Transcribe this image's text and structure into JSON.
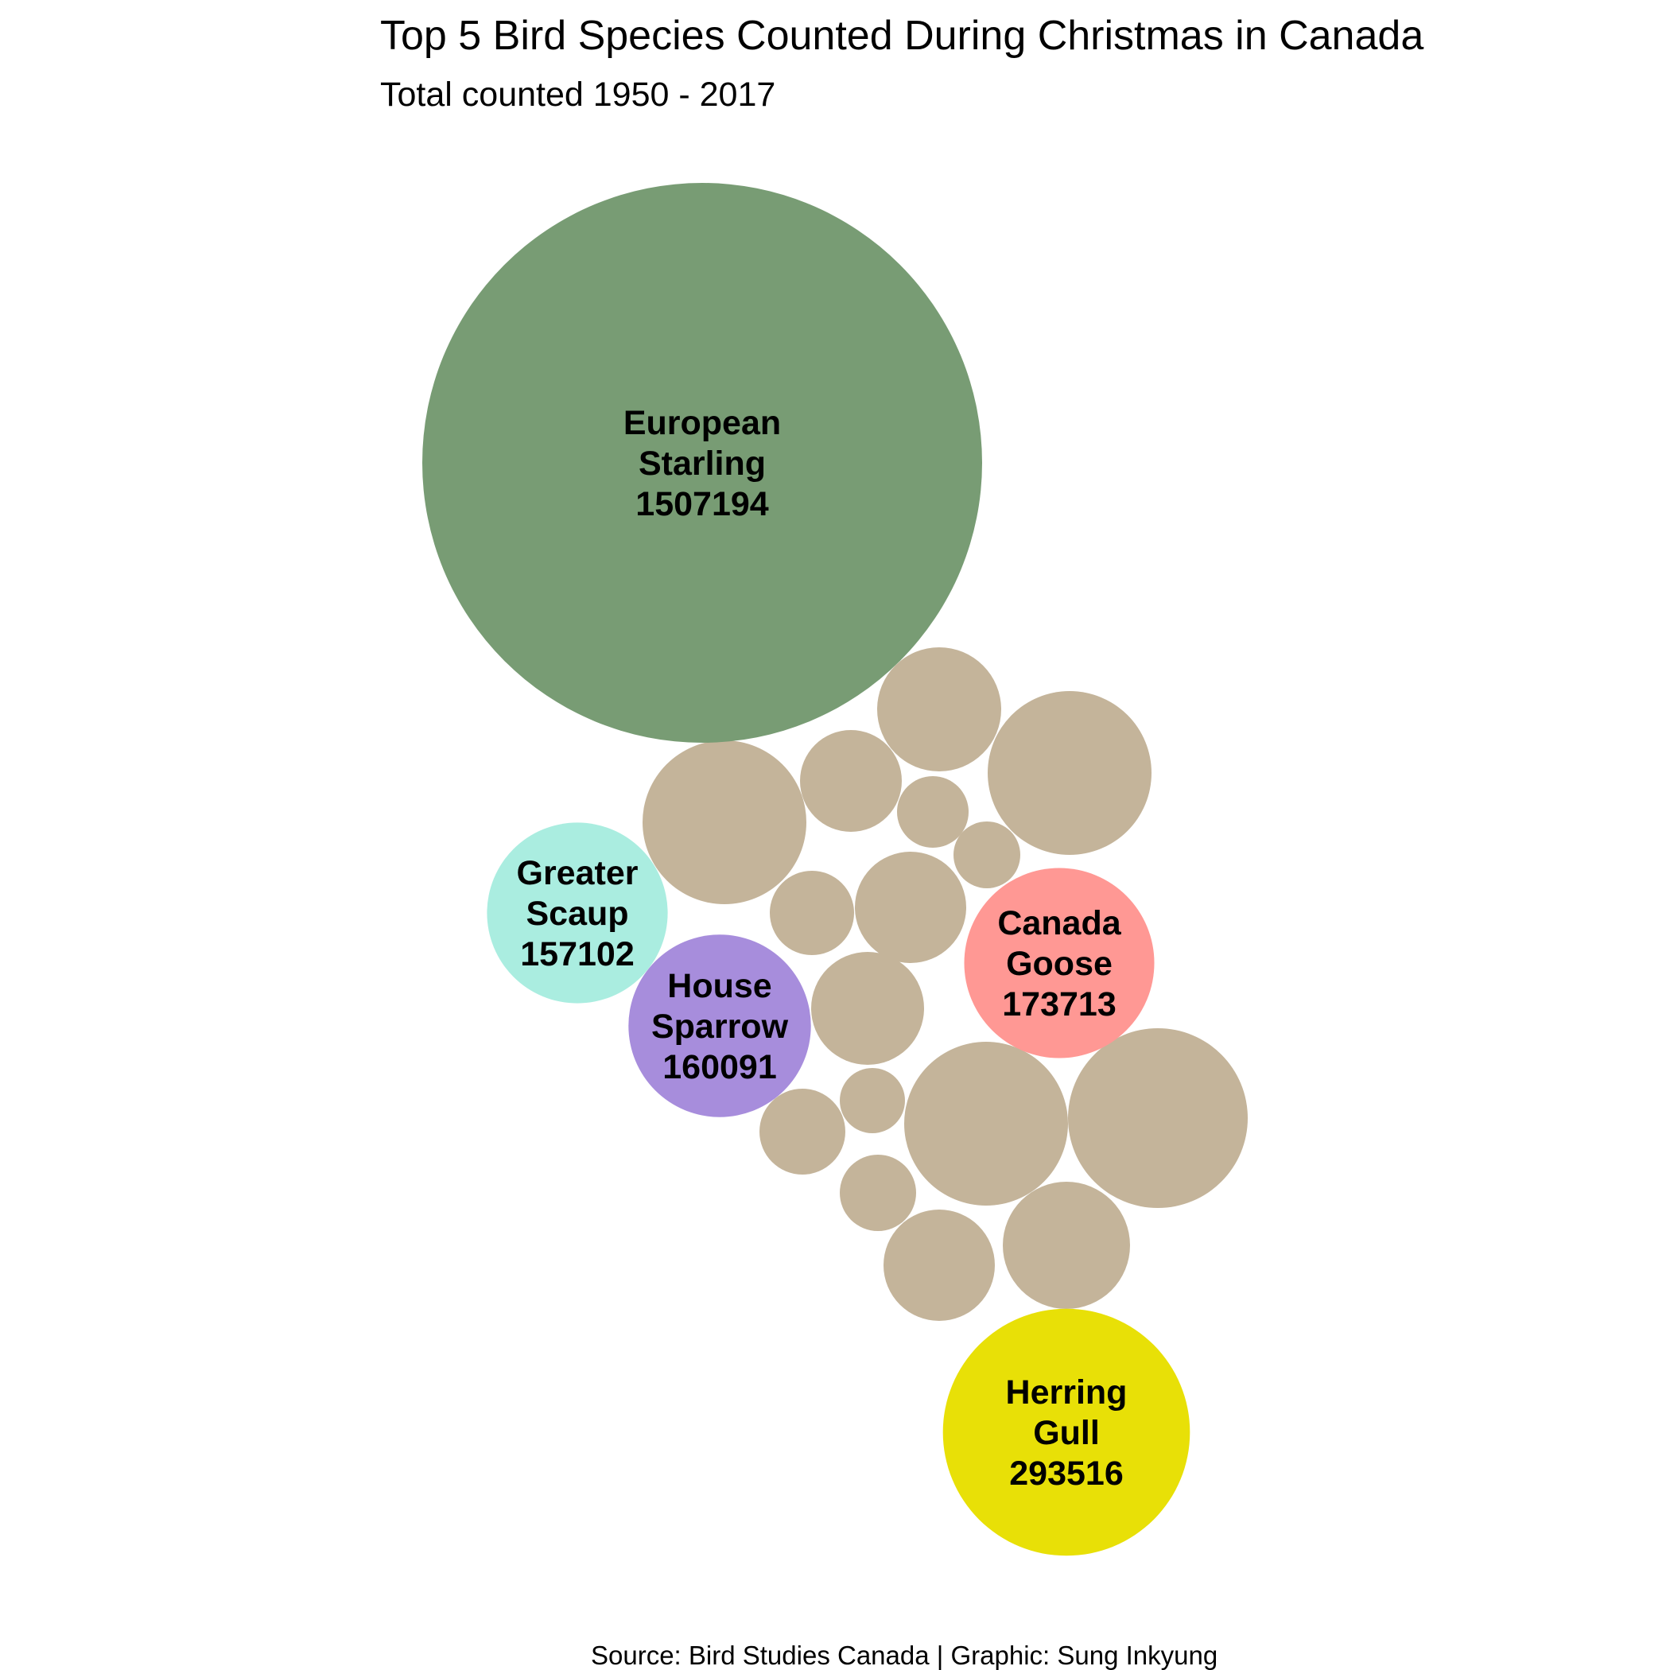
{
  "chart_data": {
    "type": "bubble",
    "title": "Top 5 Bird Species Counted During Christmas in Canada",
    "subtitle": "Total counted 1950 - 2017",
    "caption": "Source: Bird Studies Canada | Graphic: Sung Inkyung",
    "highlight_fill": true,
    "other_species_color": "#c4b49a",
    "series": [
      {
        "name": "European Starling",
        "label_lines": [
          "European",
          "Starling"
        ],
        "value": 1507194,
        "color": "#789c74"
      },
      {
        "name": "Herring Gull",
        "label_lines": [
          "Herring",
          "Gull"
        ],
        "value": 293516,
        "color": "#e8e007"
      },
      {
        "name": "Canada Goose",
        "label_lines": [
          "Canada",
          "Goose"
        ],
        "value": 173713,
        "color": "#ff9894"
      },
      {
        "name": "House Sparrow",
        "label_lines": [
          "House",
          "Sparrow"
        ],
        "value": 160091,
        "color": "#a78ddc"
      },
      {
        "name": "Greater Scaup",
        "label_lines": [
          "Greater",
          "Scaup"
        ],
        "value": 157102,
        "color": "#aaede0"
      }
    ]
  }
}
